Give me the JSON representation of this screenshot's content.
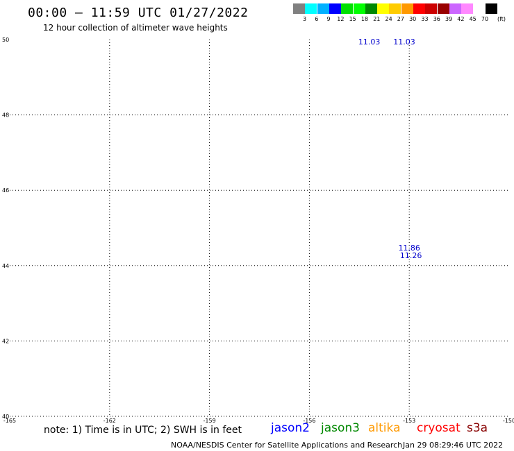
{
  "header": {
    "title": "00:00 – 11:59 UTC 01/27/2022",
    "subtitle": "12 hour collection of altimeter wave heights"
  },
  "legend": {
    "unit": "(ft)",
    "colors": [
      "#808080",
      "#00ffff",
      "#00b0ff",
      "#0000ff",
      "#00e000",
      "#00ff00",
      "#008800",
      "#ffff00",
      "#ffcc00",
      "#ff9900",
      "#ff0000",
      "#cc0000",
      "#990000",
      "#cc66ff",
      "#ff88ff",
      "#ffffff",
      "#000000"
    ],
    "labels": [
      "3",
      "6",
      "9",
      "12",
      "15",
      "18",
      "21",
      "24",
      "27",
      "30",
      "33",
      "36",
      "39",
      "42",
      "45",
      "70"
    ]
  },
  "axes": {
    "x_labels": [
      "-165",
      "-162",
      "-159",
      "-156",
      "-153",
      "-150"
    ],
    "y_labels": [
      "50",
      "48",
      "46",
      "44",
      "42",
      "40"
    ]
  },
  "observations": [
    {
      "lon": -153.0,
      "lat": 44.4,
      "text": "11.86",
      "color": "#0000cc"
    },
    {
      "lon": -152.95,
      "lat": 44.2,
      "text": "11.26",
      "color": "#0000cc"
    },
    {
      "lon": -153.15,
      "lat": 49.87,
      "text": "11.03",
      "color": "#0000cc"
    },
    {
      "lon": -154.2,
      "lat": 49.87,
      "text": "11.03",
      "color": "#0000cc"
    }
  ],
  "tracks": [],
  "footer": {
    "note": "note:  1) Time is in UTC;  2) SWH is in feet",
    "satellites": [
      {
        "name": "jason2",
        "color": "#0000ff"
      },
      {
        "name": "jason3",
        "color": "#008800"
      },
      {
        "name": "altika",
        "color": "#ff9900"
      },
      {
        "name": "cryosat",
        "color": "#ff0000"
      },
      {
        "name": "s3a",
        "color": "#880000"
      }
    ],
    "credit": "NOAA/NESDIS Center for Satellite Applications and Research",
    "timestamp": "Jan 29 08:29:46 UTC 2022"
  }
}
